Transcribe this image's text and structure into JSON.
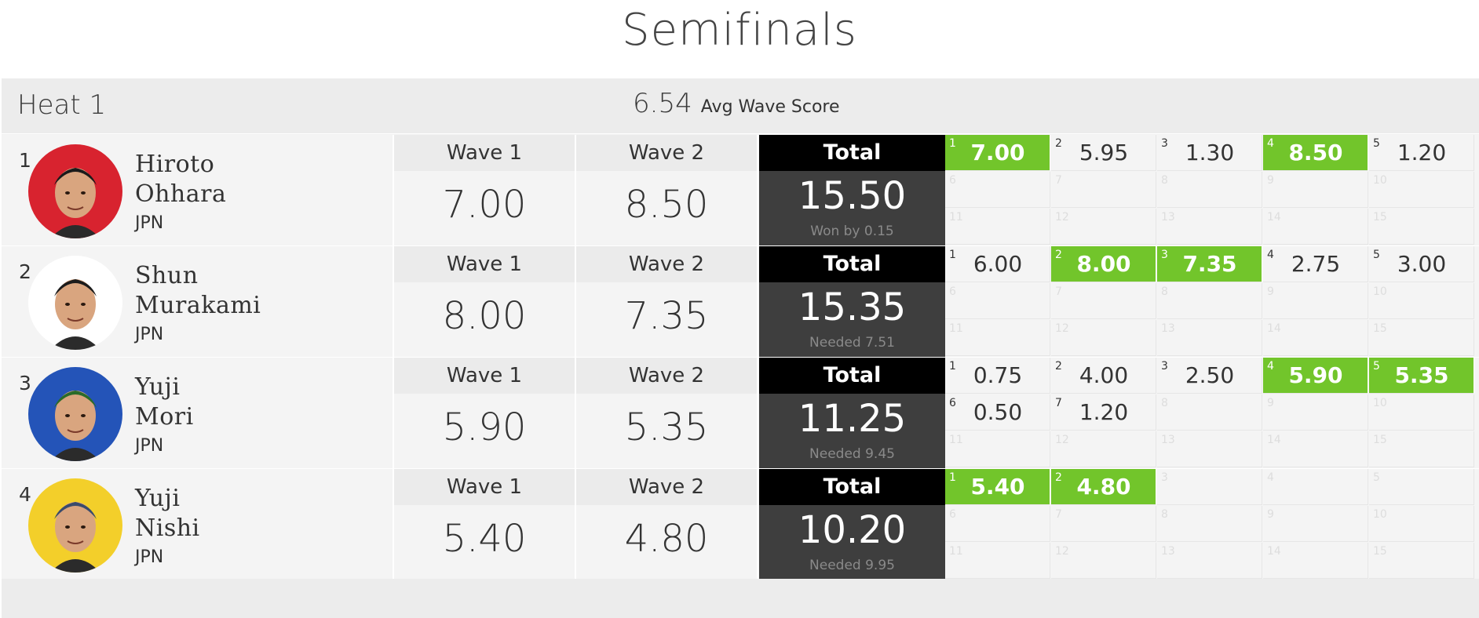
{
  "page_title": "Semifinals",
  "heat": {
    "name": "Heat 1",
    "avg_value": "6.54",
    "avg_label": "Avg Wave Score"
  },
  "labels": {
    "wave1": "Wave 1",
    "wave2": "Wave 2",
    "total": "Total"
  },
  "colors": {
    "best_wave": "#72c52b",
    "total_bg": "#3e3e3e",
    "total_head": "#000000"
  },
  "surfers": [
    {
      "place": "1",
      "first": "Hiroto",
      "last": "Ohhara",
      "country": "JPN",
      "wave1": "7.00",
      "wave2": "8.50",
      "total": "15.50",
      "note": "Won by 0.15",
      "avatar_bg": "#d8232f",
      "waves": [
        {
          "n": "1",
          "v": "7.00",
          "best": true
        },
        {
          "n": "2",
          "v": "5.95"
        },
        {
          "n": "3",
          "v": "1.30"
        },
        {
          "n": "4",
          "v": "8.50",
          "best": true
        },
        {
          "n": "5",
          "v": "1.20"
        },
        {
          "n": "6"
        },
        {
          "n": "7"
        },
        {
          "n": "8"
        },
        {
          "n": "9"
        },
        {
          "n": "10"
        },
        {
          "n": "11"
        },
        {
          "n": "12"
        },
        {
          "n": "13"
        },
        {
          "n": "14"
        },
        {
          "n": "15"
        }
      ]
    },
    {
      "place": "2",
      "first": "Shun",
      "last": "Murakami",
      "country": "JPN",
      "wave1": "8.00",
      "wave2": "7.35",
      "total": "15.35",
      "note": "Needed 7.51",
      "avatar_bg": "#ffffff",
      "waves": [
        {
          "n": "1",
          "v": "6.00"
        },
        {
          "n": "2",
          "v": "8.00",
          "best": true
        },
        {
          "n": "3",
          "v": "7.35",
          "best": true
        },
        {
          "n": "4",
          "v": "2.75"
        },
        {
          "n": "5",
          "v": "3.00"
        },
        {
          "n": "6"
        },
        {
          "n": "7"
        },
        {
          "n": "8"
        },
        {
          "n": "9"
        },
        {
          "n": "10"
        },
        {
          "n": "11"
        },
        {
          "n": "12"
        },
        {
          "n": "13"
        },
        {
          "n": "14"
        },
        {
          "n": "15"
        }
      ]
    },
    {
      "place": "3",
      "first": "Yuji",
      "last": "Mori",
      "country": "JPN",
      "wave1": "5.90",
      "wave2": "5.35",
      "total": "11.25",
      "note": "Needed 9.45",
      "avatar_bg": "#2454b8",
      "waves": [
        {
          "n": "1",
          "v": "0.75"
        },
        {
          "n": "2",
          "v": "4.00"
        },
        {
          "n": "3",
          "v": "2.50"
        },
        {
          "n": "4",
          "v": "5.90",
          "best": true
        },
        {
          "n": "5",
          "v": "5.35",
          "best": true
        },
        {
          "n": "6",
          "v": "0.50"
        },
        {
          "n": "7",
          "v": "1.20"
        },
        {
          "n": "8"
        },
        {
          "n": "9"
        },
        {
          "n": "10"
        },
        {
          "n": "11"
        },
        {
          "n": "12"
        },
        {
          "n": "13"
        },
        {
          "n": "14"
        },
        {
          "n": "15"
        }
      ]
    },
    {
      "place": "4",
      "first": "Yuji",
      "last": "Nishi",
      "country": "JPN",
      "wave1": "5.40",
      "wave2": "4.80",
      "total": "10.20",
      "note": "Needed 9.95",
      "avatar_bg": "#f3cf2a",
      "waves": [
        {
          "n": "1",
          "v": "5.40",
          "best": true
        },
        {
          "n": "2",
          "v": "4.80",
          "best": true
        },
        {
          "n": "3"
        },
        {
          "n": "4"
        },
        {
          "n": "5"
        },
        {
          "n": "6"
        },
        {
          "n": "7"
        },
        {
          "n": "8"
        },
        {
          "n": "9"
        },
        {
          "n": "10"
        },
        {
          "n": "11"
        },
        {
          "n": "12"
        },
        {
          "n": "13"
        },
        {
          "n": "14"
        },
        {
          "n": "15"
        }
      ]
    }
  ]
}
